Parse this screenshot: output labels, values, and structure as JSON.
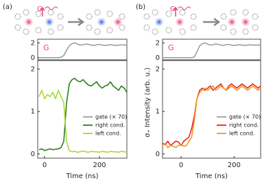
{
  "panels": [
    {
      "label": "(a)",
      "schematic_label": "G"
    },
    {
      "label": "(b)",
      "schematic_label": "G"
    }
  ],
  "chart_data": [
    {
      "type": "line",
      "annotation": "G",
      "xlim": [
        -25,
        300
      ],
      "ylim": [
        -0.3,
        2.5
      ],
      "yticks": [
        0,
        2
      ],
      "x": [
        -20,
        -10,
        0,
        10,
        20,
        30,
        40,
        50,
        60,
        70,
        80,
        90,
        100,
        110,
        120,
        130,
        140,
        150,
        160,
        170,
        180,
        190,
        200,
        210,
        220,
        230,
        240,
        250,
        260,
        270,
        280,
        290,
        300
      ],
      "series": [
        {
          "name": "gate (× 70)",
          "color": "#9e9e9e",
          "values": [
            0,
            0,
            0,
            0,
            0,
            0,
            0,
            0,
            0.05,
            0.3,
            1.0,
            1.6,
            1.9,
            2.0,
            1.85,
            1.7,
            1.75,
            1.85,
            1.8,
            1.7,
            1.65,
            1.75,
            1.8,
            1.7,
            1.65,
            1.7,
            1.75,
            1.7,
            1.65,
            1.7,
            1.75,
            1.7,
            1.7
          ]
        }
      ]
    },
    {
      "type": "line",
      "xlabel": "Time (ns)",
      "legend": "lower right",
      "xlim": [
        -25,
        300
      ],
      "ylim": [
        -0.1,
        2.2
      ],
      "xticks": [
        0,
        200
      ],
      "yticks": [
        0,
        1,
        2
      ],
      "x": [
        -20,
        -10,
        0,
        10,
        20,
        30,
        40,
        50,
        60,
        70,
        80,
        90,
        100,
        110,
        120,
        130,
        140,
        150,
        160,
        170,
        180,
        190,
        200,
        210,
        220,
        230,
        240,
        250,
        260,
        270,
        280,
        290,
        300
      ],
      "series": [
        {
          "name": "right cond.",
          "color": "#2e7d1f",
          "values": [
            0.1,
            0.12,
            0.08,
            0.1,
            0.12,
            0.1,
            0.11,
            0.12,
            0.15,
            0.3,
            1.2,
            1.65,
            1.75,
            1.78,
            1.72,
            1.7,
            1.75,
            1.68,
            1.62,
            1.6,
            1.65,
            1.7,
            1.6,
            1.55,
            1.6,
            1.62,
            1.7,
            1.6,
            1.55,
            1.5,
            1.6,
            1.55,
            1.45
          ]
        },
        {
          "name": "left cond.",
          "color": "#a8d832",
          "values": [
            1.35,
            1.5,
            1.3,
            1.4,
            1.35,
            1.45,
            1.3,
            1.5,
            1.35,
            1.2,
            0.3,
            0.08,
            0.05,
            0.06,
            0.04,
            0.05,
            0.07,
            0.05,
            0.04,
            0.06,
            0.05,
            0.05,
            0.04,
            0.06,
            0.05,
            0.04,
            0.06,
            0.05,
            0.05,
            0.04,
            0.06,
            0.05,
            0.05
          ]
        }
      ]
    },
    {
      "type": "line",
      "annotation": "G",
      "xlim": [
        -70,
        300
      ],
      "ylim": [
        -0.3,
        2.5
      ],
      "yticks": [
        0,
        2
      ],
      "x": [
        -70,
        -60,
        -50,
        -40,
        -30,
        -20,
        -10,
        0,
        10,
        20,
        30,
        40,
        50,
        60,
        70,
        80,
        90,
        100,
        110,
        120,
        130,
        140,
        150,
        160,
        170,
        180,
        190,
        200,
        210,
        220,
        230,
        240,
        250,
        260,
        270,
        280,
        290,
        300
      ],
      "series": [
        {
          "name": "gate (× 70)",
          "color": "#9e9e9e",
          "values": [
            0,
            0,
            0,
            0,
            0,
            0,
            0,
            0,
            0,
            0,
            0,
            0,
            0.1,
            0.8,
            1.6,
            1.9,
            2.0,
            1.85,
            1.7,
            1.75,
            1.85,
            1.8,
            1.7,
            1.65,
            1.75,
            1.8,
            1.7,
            1.65,
            1.7,
            1.75,
            1.7,
            1.65,
            1.7,
            1.75,
            1.7,
            1.7,
            1.72,
            1.7
          ]
        }
      ]
    },
    {
      "type": "line",
      "xlabel": "Time (ns)",
      "ylabel": "σ₊ Intensity (arb. u.)",
      "legend": "lower right",
      "xlim": [
        -70,
        300
      ],
      "ylim": [
        -0.1,
        2.2
      ],
      "xticks": [
        0,
        200
      ],
      "yticks": [
        0,
        1,
        2
      ],
      "x": [
        -70,
        -60,
        -50,
        -40,
        -30,
        -20,
        -10,
        0,
        10,
        20,
        30,
        40,
        50,
        60,
        70,
        80,
        90,
        100,
        110,
        120,
        130,
        140,
        150,
        160,
        170,
        180,
        190,
        200,
        210,
        220,
        230,
        240,
        250,
        260,
        270,
        280,
        290,
        300
      ],
      "series": [
        {
          "name": "right cond.",
          "color": "#e52421",
          "values": [
            0.25,
            0.22,
            0.3,
            0.2,
            0.25,
            0.3,
            0.28,
            0.2,
            0.3,
            0.35,
            0.4,
            0.6,
            0.9,
            1.3,
            1.5,
            1.55,
            1.5,
            1.55,
            1.6,
            1.5,
            1.55,
            1.6,
            1.65,
            1.55,
            1.5,
            1.6,
            1.65,
            1.6,
            1.55,
            1.6,
            1.65,
            1.6,
            1.55,
            1.6,
            1.65,
            1.6,
            1.55,
            1.6
          ]
        },
        {
          "name": "left cond.",
          "color": "#f7931e",
          "values": [
            0.2,
            0.25,
            0.15,
            0.2,
            0.18,
            0.15,
            0.2,
            0.22,
            0.18,
            0.2,
            0.3,
            0.4,
            0.8,
            1.3,
            1.45,
            1.5,
            1.55,
            1.5,
            1.55,
            1.6,
            1.5,
            1.55,
            1.6,
            1.55,
            1.5,
            1.55,
            1.6,
            1.55,
            1.5,
            1.55,
            1.6,
            1.55,
            1.5,
            1.55,
            1.6,
            1.55,
            1.5,
            1.55
          ]
        }
      ]
    }
  ]
}
